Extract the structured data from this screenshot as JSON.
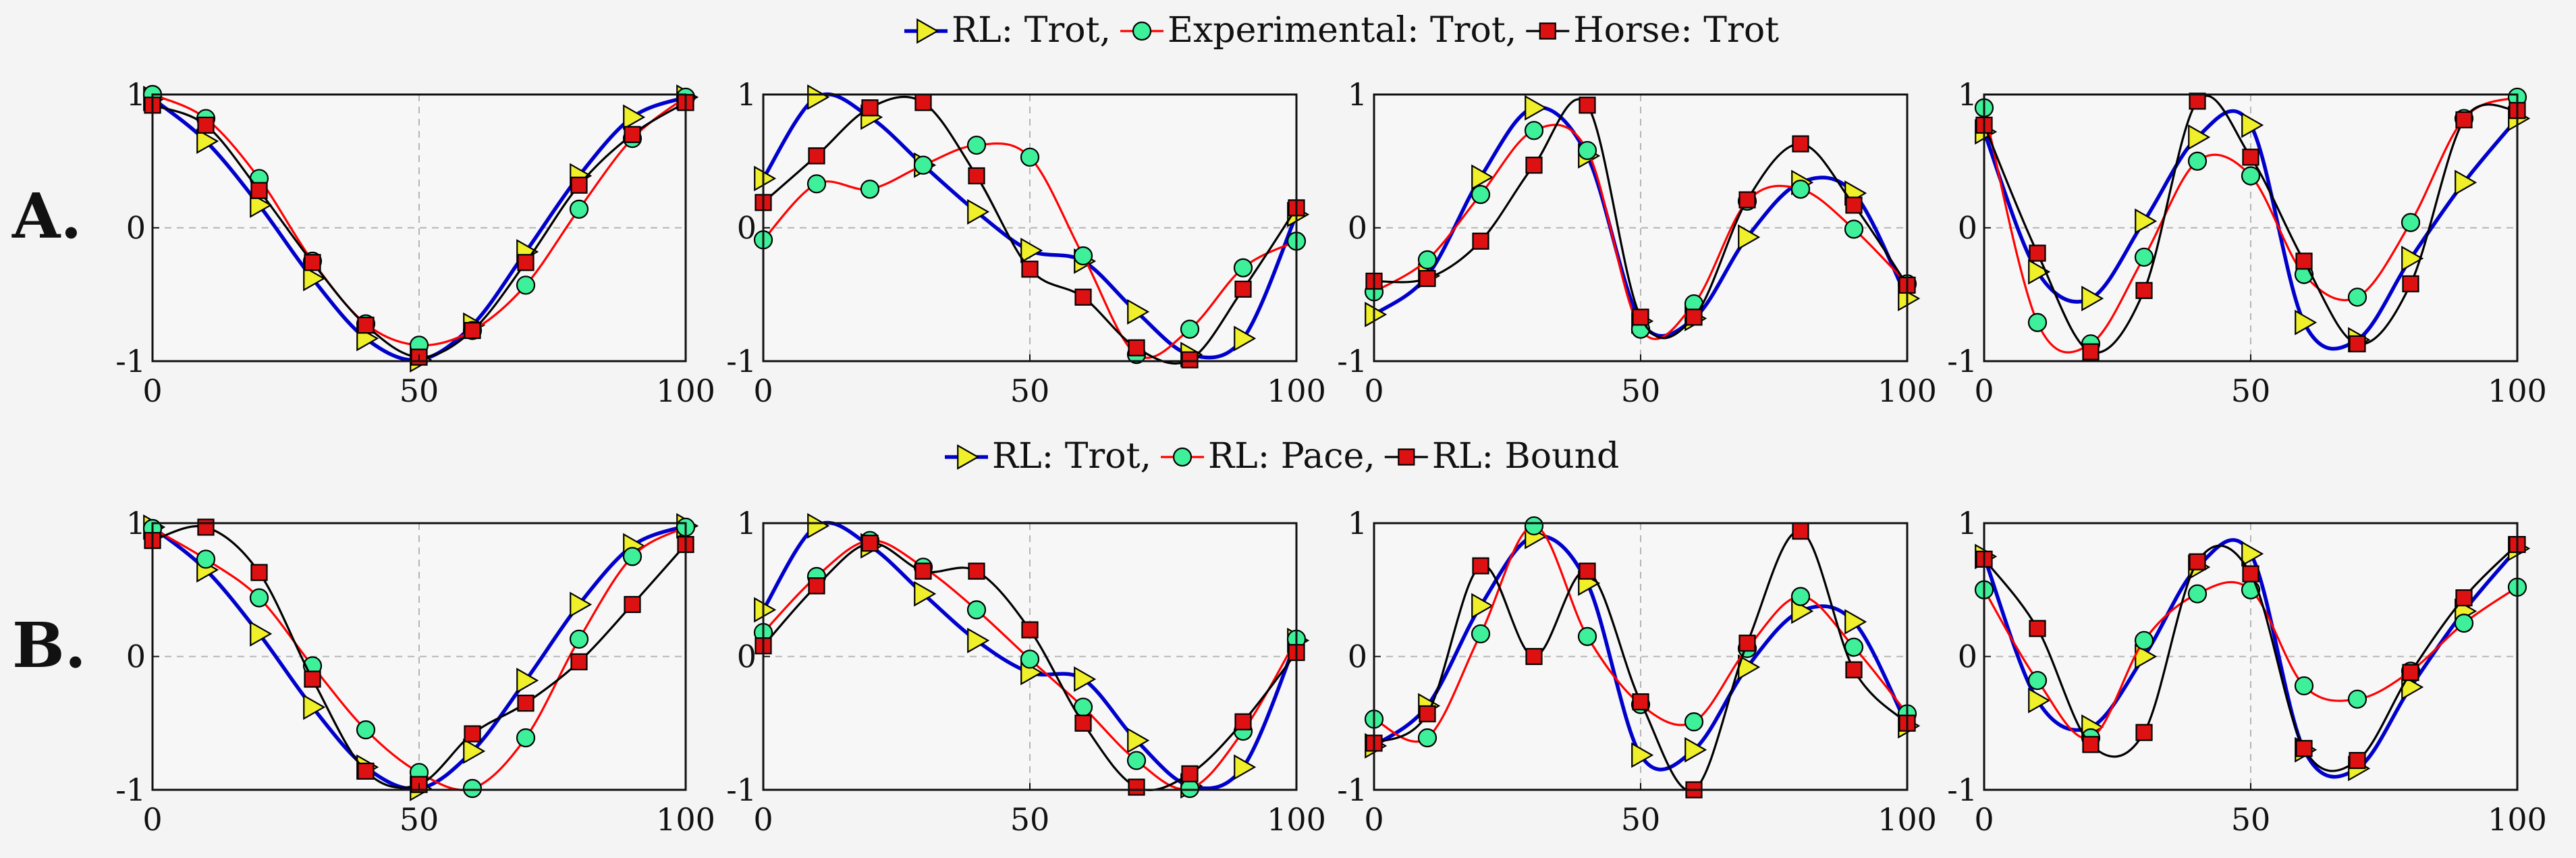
{
  "row_labels": [
    "A.",
    "B."
  ],
  "colors": {
    "blue": "#0000cc",
    "red": "#ff0000",
    "black": "#000000",
    "triangle_fill": "#f0f02a",
    "circle_fill": "#3ef09a",
    "square_fill": "#dd1111"
  },
  "chart_data": {
    "type": "line",
    "xlim": [
      0,
      100
    ],
    "ylim": [
      -1,
      1
    ],
    "x_ticks": [
      0,
      50,
      100
    ],
    "y_ticks": [
      -1,
      0,
      1
    ],
    "y_tick_labels": [
      "-1",
      "0",
      "1"
    ],
    "grid": "dashed at x=50 and y=0",
    "rows": [
      {
        "label": "A.",
        "legend": [
          {
            "name": "RL: Trot",
            "color": "#0000cc",
            "marker": "triangle"
          },
          {
            "name": "Experimental: Trot",
            "color": "#ff0000",
            "marker": "circle"
          },
          {
            "name": "Horse: Trot",
            "color": "#000000",
            "marker": "square"
          }
        ],
        "panels": [
          {
            "series": [
              {
                "x": [
                  0,
                  10,
                  20,
                  30,
                  40,
                  50,
                  60,
                  70,
                  80,
                  90,
                  100
                ],
                "y": [
                  0.97,
                  0.65,
                  0.17,
                  -0.38,
                  -0.83,
                  -0.99,
                  -0.73,
                  -0.18,
                  0.39,
                  0.83,
                  0.98
                ]
              },
              {
                "x": [
                  0,
                  10,
                  20,
                  30,
                  40,
                  50,
                  60,
                  70,
                  80,
                  90,
                  100
                ],
                "y": [
                  1,
                  0.82,
                  0.37,
                  -0.25,
                  -0.72,
                  -0.88,
                  -0.77,
                  -0.43,
                  0.14,
                  0.67,
                  0.98
                ]
              },
              {
                "x": [
                  0,
                  10,
                  20,
                  30,
                  40,
                  50,
                  60,
                  70,
                  80,
                  90,
                  100
                ],
                "y": [
                  0.92,
                  0.77,
                  0.28,
                  -0.26,
                  -0.73,
                  -0.97,
                  -0.77,
                  -0.26,
                  0.32,
                  0.7,
                  0.94
                ]
              }
            ]
          },
          {
            "series": [
              {
                "x": [
                  0,
                  10,
                  20,
                  30,
                  40,
                  50,
                  60,
                  70,
                  80,
                  90,
                  100
                ],
                "y": [
                  0.37,
                  0.98,
                  0.83,
                  0.47,
                  0.12,
                  -0.17,
                  -0.25,
                  -0.63,
                  -0.95,
                  -0.83,
                  0.1
                ]
              },
              {
                "x": [
                  0,
                  10,
                  20,
                  30,
                  40,
                  50,
                  60,
                  70,
                  80,
                  90,
                  100
                ],
                "y": [
                  -0.09,
                  0.33,
                  0.29,
                  0.47,
                  0.62,
                  0.53,
                  -0.21,
                  -0.95,
                  -0.76,
                  -0.3,
                  -0.1
                ]
              },
              {
                "x": [
                  0,
                  10,
                  20,
                  30,
                  40,
                  50,
                  60,
                  70,
                  80,
                  90,
                  100
                ],
                "y": [
                  0.19,
                  0.54,
                  0.9,
                  0.94,
                  0.39,
                  -0.31,
                  -0.52,
                  -0.9,
                  -0.99,
                  -0.46,
                  0.15
                ]
              }
            ]
          },
          {
            "series": [
              {
                "x": [
                  0,
                  10,
                  20,
                  30,
                  40,
                  50,
                  60,
                  70,
                  80,
                  90,
                  100
                ],
                "y": [
                  -0.65,
                  -0.36,
                  0.38,
                  0.9,
                  0.54,
                  -0.7,
                  -0.68,
                  -0.07,
                  0.34,
                  0.26,
                  -0.53
                ]
              },
              {
                "x": [
                  0,
                  10,
                  20,
                  30,
                  40,
                  50,
                  60,
                  70,
                  80,
                  90,
                  100
                ],
                "y": [
                  -0.48,
                  -0.24,
                  0.25,
                  0.73,
                  0.58,
                  -0.76,
                  -0.57,
                  0.2,
                  0.29,
                  -0.01,
                  -0.42
                ]
              },
              {
                "x": [
                  0,
                  10,
                  20,
                  30,
                  40,
                  50,
                  60,
                  70,
                  80,
                  90,
                  100
                ],
                "y": [
                  -0.4,
                  -0.38,
                  -0.1,
                  0.47,
                  0.92,
                  -0.67,
                  -0.67,
                  0.21,
                  0.63,
                  0.17,
                  -0.43
                ]
              }
            ]
          },
          {
            "series": [
              {
                "x": [
                  0,
                  10,
                  20,
                  30,
                  40,
                  50,
                  60,
                  70,
                  80,
                  90,
                  100
                ],
                "y": [
                  0.72,
                  -0.33,
                  -0.53,
                  0.05,
                  0.68,
                  0.77,
                  -0.71,
                  -0.84,
                  -0.23,
                  0.34,
                  0.82
                ]
              },
              {
                "x": [
                  0,
                  10,
                  20,
                  30,
                  40,
                  50,
                  60,
                  70,
                  80,
                  90,
                  100
                ],
                "y": [
                  0.9,
                  -0.71,
                  -0.87,
                  -0.22,
                  0.5,
                  0.39,
                  -0.35,
                  -0.52,
                  0.04,
                  0.82,
                  0.98
                ]
              },
              {
                "x": [
                  0,
                  10,
                  20,
                  30,
                  40,
                  50,
                  60,
                  70,
                  80,
                  90,
                  100
                ],
                "y": [
                  0.77,
                  -0.19,
                  -0.93,
                  -0.47,
                  0.95,
                  0.53,
                  -0.25,
                  -0.87,
                  -0.42,
                  0.81,
                  0.88
                ]
              }
            ]
          }
        ]
      },
      {
        "label": "B.",
        "legend": [
          {
            "name": "RL: Trot",
            "color": "#0000cc",
            "marker": "triangle"
          },
          {
            "name": "RL: Pace",
            "color": "#ff0000",
            "marker": "circle"
          },
          {
            "name": "RL: Bound",
            "color": "#000000",
            "marker": "square"
          }
        ],
        "panels": [
          {
            "series": [
              {
                "x": [
                  0,
                  10,
                  20,
                  30,
                  40,
                  50,
                  60,
                  70,
                  80,
                  90,
                  100
                ],
                "y": [
                  0.97,
                  0.65,
                  0.17,
                  -0.38,
                  -0.83,
                  -0.99,
                  -0.71,
                  -0.18,
                  0.39,
                  0.83,
                  0.98
                ]
              },
              {
                "x": [
                  0,
                  10,
                  20,
                  30,
                  40,
                  50,
                  60,
                  70,
                  80,
                  90,
                  100
                ],
                "y": [
                  0.96,
                  0.73,
                  0.44,
                  -0.07,
                  -0.55,
                  -0.87,
                  -0.99,
                  -0.61,
                  0.13,
                  0.75,
                  0.97
                ]
              },
              {
                "x": [
                  0,
                  10,
                  20,
                  30,
                  40,
                  50,
                  60,
                  70,
                  80,
                  90,
                  100
                ],
                "y": [
                  0.87,
                  0.97,
                  0.63,
                  -0.17,
                  -0.86,
                  -0.96,
                  -0.58,
                  -0.35,
                  -0.04,
                  0.39,
                  0.84
                ]
              }
            ]
          },
          {
            "series": [
              {
                "x": [
                  0,
                  10,
                  20,
                  30,
                  40,
                  50,
                  60,
                  70,
                  80,
                  90,
                  100
                ],
                "y": [
                  0.35,
                  0.98,
                  0.83,
                  0.47,
                  0.12,
                  -0.12,
                  -0.17,
                  -0.63,
                  -0.97,
                  -0.83,
                  0.12
                ]
              },
              {
                "x": [
                  0,
                  10,
                  20,
                  30,
                  40,
                  50,
                  60,
                  70,
                  80,
                  90,
                  100
                ],
                "y": [
                  0.18,
                  0.6,
                  0.87,
                  0.67,
                  0.35,
                  -0.02,
                  -0.38,
                  -0.78,
                  -0.99,
                  -0.56,
                  0.13
                ]
              },
              {
                "x": [
                  0,
                  10,
                  20,
                  30,
                  40,
                  50,
                  60,
                  70,
                  80,
                  90,
                  100
                ],
                "y": [
                  0.08,
                  0.53,
                  0.85,
                  0.64,
                  0.64,
                  0.2,
                  -0.5,
                  -0.98,
                  -0.88,
                  -0.49,
                  0.03
                ]
              }
            ]
          },
          {
            "series": [
              {
                "x": [
                  0,
                  10,
                  20,
                  30,
                  40,
                  50,
                  60,
                  70,
                  80,
                  90,
                  100
                ],
                "y": [
                  -0.67,
                  -0.37,
                  0.38,
                  0.9,
                  0.55,
                  -0.74,
                  -0.7,
                  -0.08,
                  0.34,
                  0.26,
                  -0.52
                ]
              },
              {
                "x": [
                  0,
                  10,
                  20,
                  30,
                  40,
                  50,
                  60,
                  70,
                  80,
                  90,
                  100
                ],
                "y": [
                  -0.47,
                  -0.61,
                  0.17,
                  0.98,
                  0.15,
                  -0.36,
                  -0.49,
                  0.06,
                  0.45,
                  0.07,
                  -0.43
                ]
              },
              {
                "x": [
                  0,
                  10,
                  20,
                  30,
                  40,
                  50,
                  60,
                  70,
                  80,
                  90,
                  100
                ],
                "y": [
                  -0.65,
                  -0.43,
                  0.68,
                  0.0,
                  0.64,
                  -0.34,
                  -1.0,
                  0.1,
                  0.94,
                  -0.1,
                  -0.5
                ]
              }
            ]
          },
          {
            "series": [
              {
                "x": [
                  0,
                  10,
                  20,
                  30,
                  40,
                  50,
                  60,
                  70,
                  80,
                  90,
                  100
                ],
                "y": [
                  0.75,
                  -0.33,
                  -0.53,
                  0.0,
                  0.67,
                  0.77,
                  -0.7,
                  -0.84,
                  -0.23,
                  0.34,
                  0.81
                ]
              },
              {
                "x": [
                  0,
                  10,
                  20,
                  30,
                  40,
                  50,
                  60,
                  70,
                  80,
                  90,
                  100
                ],
                "y": [
                  0.5,
                  -0.18,
                  -0.61,
                  0.12,
                  0.47,
                  0.5,
                  -0.22,
                  -0.32,
                  -0.11,
                  0.25,
                  0.52
                ]
              },
              {
                "x": [
                  0,
                  10,
                  20,
                  30,
                  40,
                  50,
                  60,
                  70,
                  80,
                  90,
                  100
                ],
                "y": [
                  0.73,
                  0.21,
                  -0.66,
                  -0.57,
                  0.71,
                  0.62,
                  -0.69,
                  -0.78,
                  -0.12,
                  0.44,
                  0.84
                ]
              }
            ]
          }
        ]
      }
    ]
  }
}
